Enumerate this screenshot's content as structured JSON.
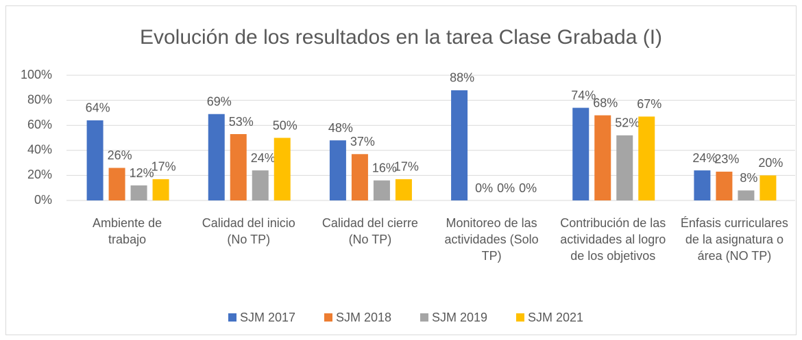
{
  "chart_data": {
    "type": "bar",
    "title": "Evolución de los resultados en la tarea Clase Grabada (I)",
    "categories": [
      "Ambiente de trabajo",
      "Calidad del inicio (No TP)",
      "Calidad del cierre (No TP)",
      "Monitoreo de las actividades (Solo TP)",
      "Contribución de las actividades al logro de los objetivos",
      "Énfasis curriculares de la asignatura o área (NO TP)"
    ],
    "series": [
      {
        "name": "SJM 2017",
        "color": "#4472c4",
        "values": [
          64,
          69,
          48,
          88,
          74,
          24
        ],
        "value_labels": [
          "64%",
          "69%",
          "48%",
          "88%",
          "74%",
          "24%"
        ]
      },
      {
        "name": "SJM 2018",
        "color": "#ed7d31",
        "values": [
          26,
          53,
          37,
          0,
          68,
          23
        ],
        "value_labels": [
          "26%",
          "53%",
          "37%",
          "0%",
          "68%",
          "23%"
        ]
      },
      {
        "name": "SJM 2019",
        "color": "#a5a5a5",
        "values": [
          12,
          24,
          16,
          0,
          52,
          8
        ],
        "value_labels": [
          "12%",
          "24%",
          "16%",
          "0%",
          "52%",
          "8%"
        ]
      },
      {
        "name": "SJM 2021",
        "color": "#ffc000",
        "values": [
          17,
          50,
          17,
          0,
          67,
          20
        ],
        "value_labels": [
          "17%",
          "50%",
          "17%",
          "0%",
          "67%",
          "20%"
        ]
      }
    ],
    "ylim": [
      0,
      100
    ],
    "yticks": [
      {
        "value": 0,
        "label": "0%"
      },
      {
        "value": 20,
        "label": "20%"
      },
      {
        "value": 40,
        "label": "40%"
      },
      {
        "value": 60,
        "label": "60%"
      },
      {
        "value": 80,
        "label": "80%"
      },
      {
        "value": 100,
        "label": "100%"
      }
    ],
    "grid": true,
    "legend": "bottom"
  }
}
